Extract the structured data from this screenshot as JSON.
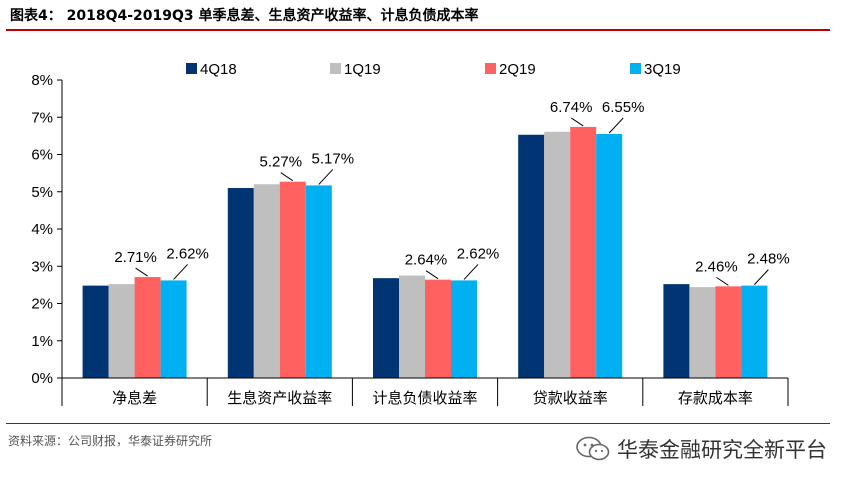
{
  "title": "图表4：  2018Q4-2019Q3 单季息差、生息资产收益率、计息负债成本率",
  "source": "资料来源：公司财报，华泰证券研究所",
  "watermark": "华泰金融研究全新平台",
  "colors": {
    "accent": "#c00000"
  },
  "chart_data": {
    "type": "bar",
    "categories": [
      "净息差",
      "生息资产收益率",
      "计息负债收益率",
      "贷款收益率",
      "存款成本率"
    ],
    "series": [
      {
        "name": "4Q18",
        "color": "#003472",
        "values": [
          2.48,
          5.1,
          2.68,
          6.53,
          2.52
        ]
      },
      {
        "name": "1Q19",
        "color": "#bfbfbf",
        "values": [
          2.52,
          5.2,
          2.75,
          6.61,
          2.44
        ]
      },
      {
        "name": "2Q19",
        "color": "#ff6161",
        "values": [
          2.71,
          5.27,
          2.64,
          6.74,
          2.46
        ]
      },
      {
        "name": "3Q19",
        "color": "#00b0f0",
        "values": [
          2.62,
          5.17,
          2.62,
          6.55,
          2.48
        ]
      }
    ],
    "data_labels": [
      {
        "category": 0,
        "series": 2,
        "text": "2.71%"
      },
      {
        "category": 0,
        "series": 3,
        "text": "2.62%"
      },
      {
        "category": 1,
        "series": 2,
        "text": "5.27%"
      },
      {
        "category": 1,
        "series": 3,
        "text": "5.17%"
      },
      {
        "category": 2,
        "series": 2,
        "text": "2.64%"
      },
      {
        "category": 2,
        "series": 3,
        "text": "2.62%"
      },
      {
        "category": 3,
        "series": 2,
        "text": "6.74%"
      },
      {
        "category": 3,
        "series": 3,
        "text": "6.55%"
      },
      {
        "category": 4,
        "series": 2,
        "text": "2.46%"
      },
      {
        "category": 4,
        "series": 3,
        "text": "2.48%"
      }
    ],
    "yticks": [
      "0%",
      "1%",
      "2%",
      "3%",
      "4%",
      "5%",
      "6%",
      "7%",
      "8%"
    ],
    "ylim": [
      0,
      8
    ],
    "legend_position": "top",
    "grid": false
  }
}
